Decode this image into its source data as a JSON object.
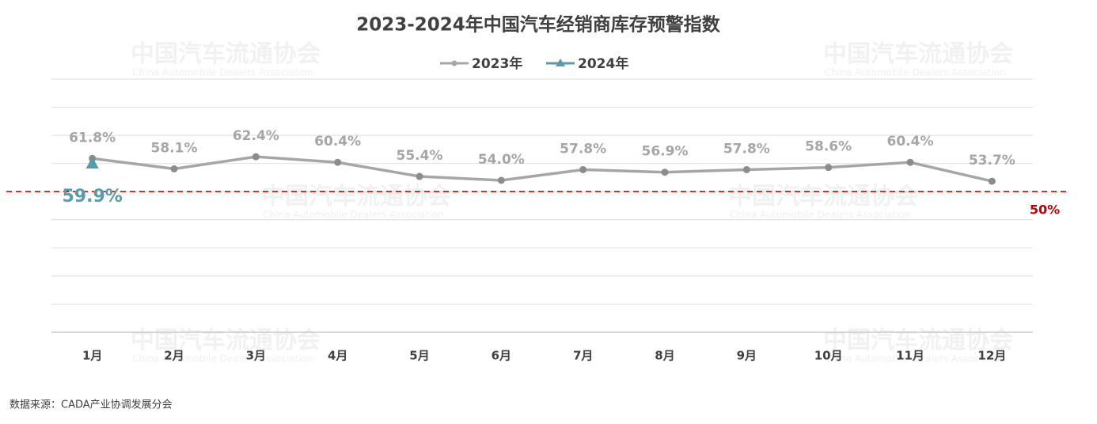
{
  "chart_data": {
    "type": "line",
    "title": "2023-2024年中国汽车经销商库存预警指数",
    "categories": [
      "1月",
      "2月",
      "3月",
      "4月",
      "5月",
      "6月",
      "7月",
      "8月",
      "9月",
      "10月",
      "11月",
      "12月"
    ],
    "series": [
      {
        "name": "2023年",
        "color": "#a6a6a6",
        "marker": "circle",
        "values": [
          61.8,
          58.1,
          62.4,
          60.4,
          55.4,
          54.0,
          57.8,
          56.9,
          57.8,
          58.6,
          60.4,
          53.7
        ],
        "value_labels": [
          "61.8%",
          "58.1%",
          "62.4%",
          "60.4%",
          "55.4%",
          "54.0%",
          "57.8%",
          "56.9%",
          "57.8%",
          "58.6%",
          "60.4%",
          "53.7%"
        ]
      },
      {
        "name": "2024年",
        "color": "#5b9aa8",
        "marker": "triangle",
        "values": [
          59.9,
          null,
          null,
          null,
          null,
          null,
          null,
          null,
          null,
          null,
          null,
          null
        ],
        "value_labels": [
          "59.9%",
          null,
          null,
          null,
          null,
          null,
          null,
          null,
          null,
          null,
          null,
          null
        ]
      }
    ],
    "ylim": [
      0,
      90
    ],
    "yticks": [
      0,
      10,
      20,
      30,
      40,
      50,
      60,
      70,
      80,
      90
    ],
    "grid": true,
    "reference_line": {
      "value": 50,
      "label": "50%",
      "color": "#c00000"
    },
    "watermark": {
      "name": "中国汽车流通协会",
      "english": "China Automobile Dealers Association"
    },
    "source": "数据来源：CADA产业协调发展分会"
  }
}
